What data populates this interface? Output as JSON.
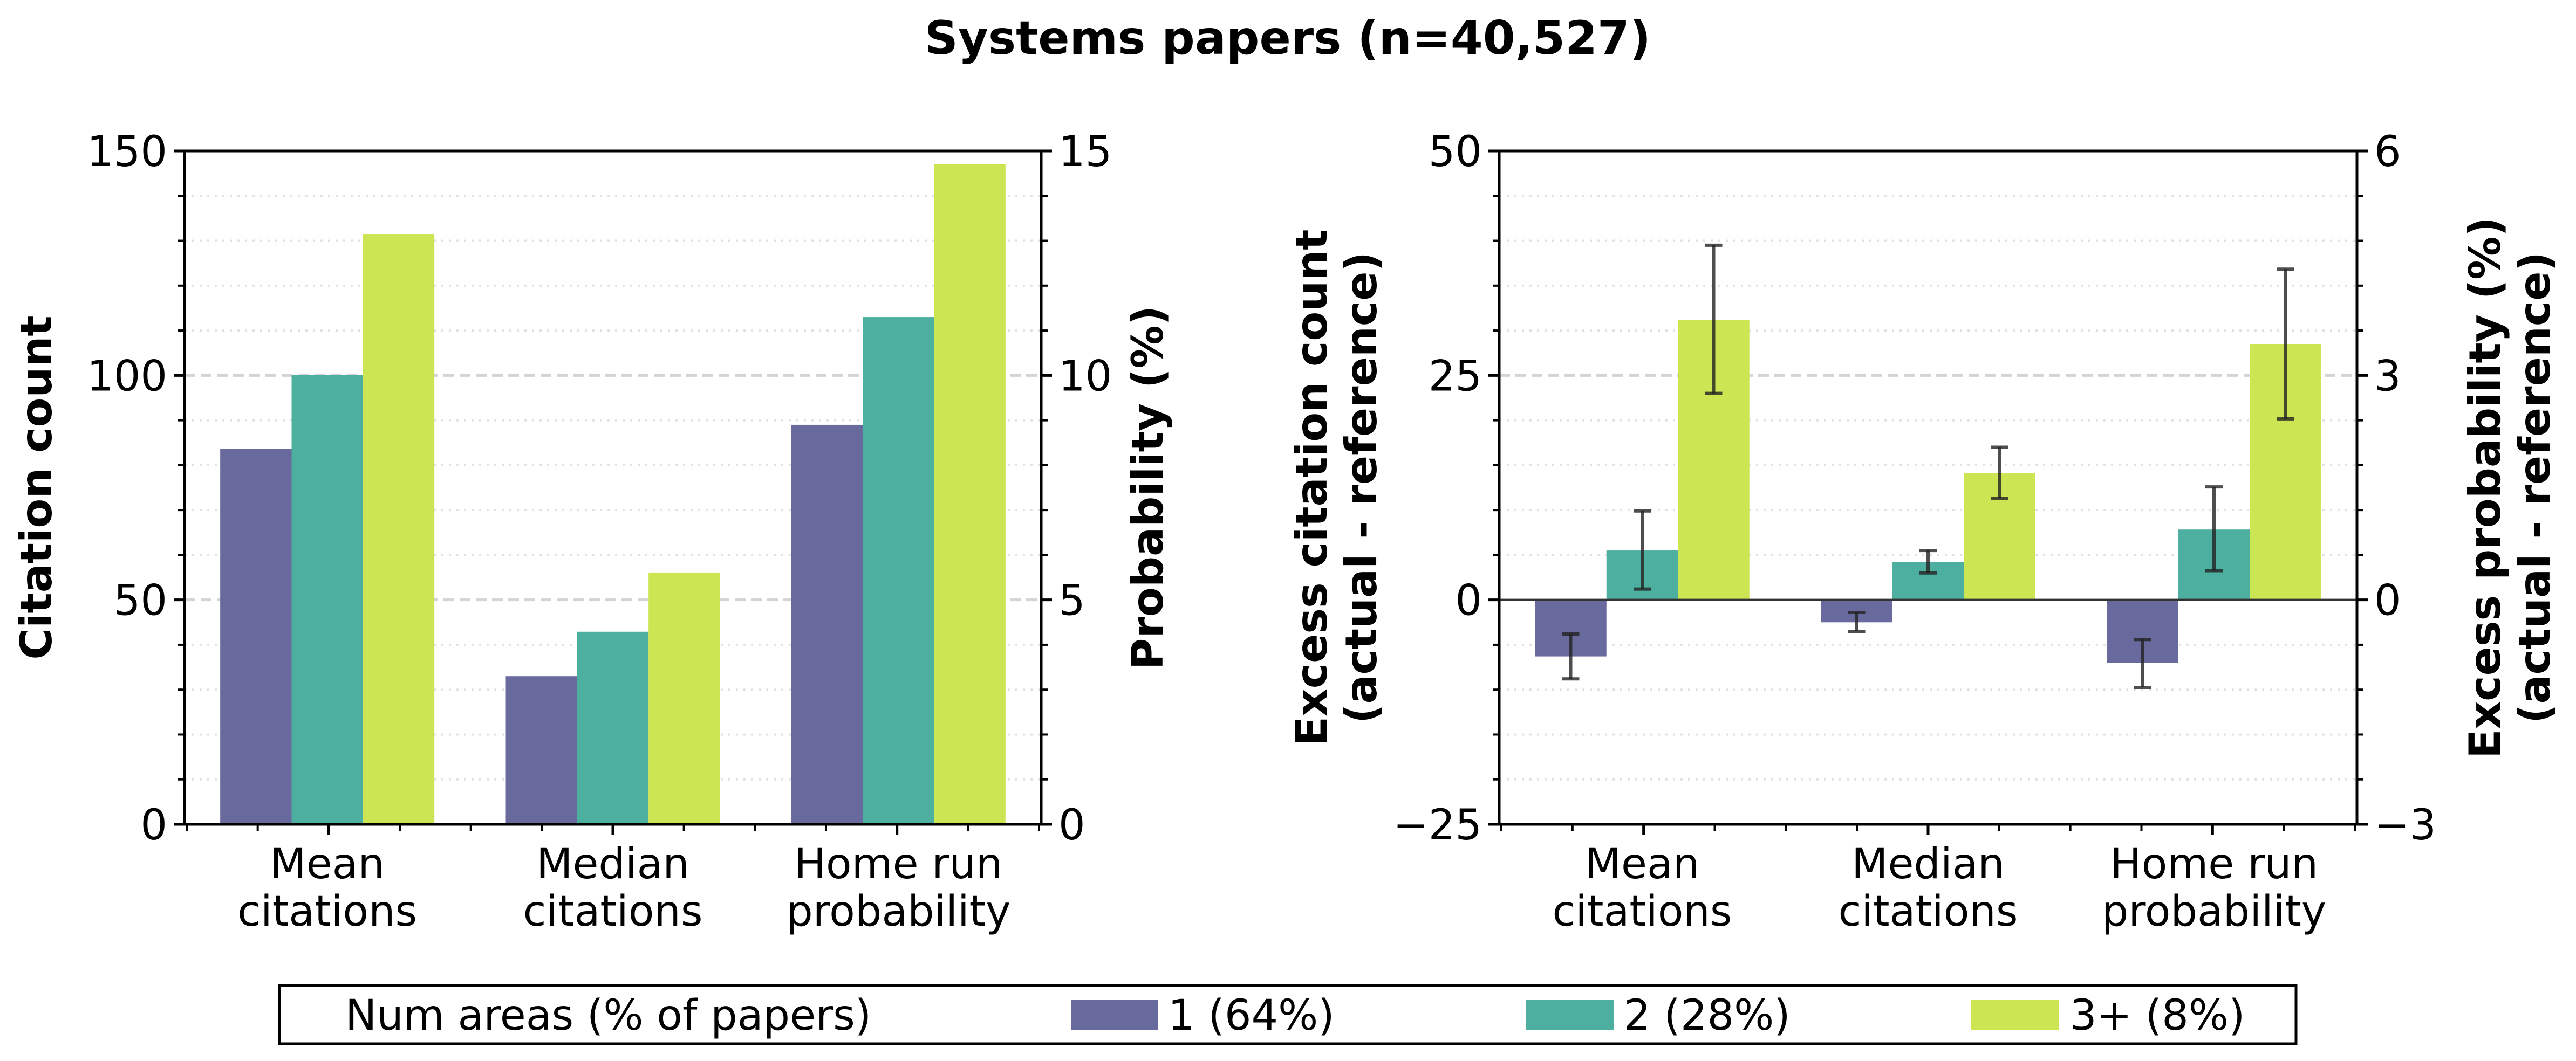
{
  "title": "Systems papers (n=40,527)",
  "colors": {
    "1": "#686a9d",
    "2": "#4caf9f",
    "3": "#cbe553",
    "errorbar": "#222222"
  },
  "legend": {
    "title": "Num areas (% of papers)",
    "entries": [
      "1 (64%)",
      "2 (28%)",
      "3+ (8%)"
    ],
    "placement": "bottom-center"
  },
  "chart_data": [
    {
      "type": "bar",
      "categories": [
        [
          "Mean",
          "citations"
        ],
        [
          "Median",
          "citations"
        ],
        [
          "Home run",
          "probability"
        ]
      ],
      "ylabel": "Citation count",
      "ylabel_right": "Probability (%)",
      "ylim": [
        0,
        150
      ],
      "ylim_right": [
        0,
        15
      ],
      "yticks": [
        "0",
        "50",
        "100",
        "150"
      ],
      "yticks_right": [
        "0",
        "5",
        "10",
        "15"
      ],
      "grid": true,
      "note_axis": "Mean and Median use left axis; Home run probability uses right axis",
      "series": [
        {
          "name": "1 (64%)",
          "values": [
            83.7,
            33.0,
            8.9
          ]
        },
        {
          "name": "2 (28%)",
          "values": [
            100.1,
            42.9,
            11.3
          ]
        },
        {
          "name": "3+ (8%)",
          "values": [
            131.5,
            56.1,
            14.7
          ]
        }
      ]
    },
    {
      "type": "bar",
      "categories": [
        [
          "Mean",
          "citations"
        ],
        [
          "Median",
          "citations"
        ],
        [
          "Home run",
          "probability"
        ]
      ],
      "ylabel": [
        "Excess citation count",
        "(actual - reference)"
      ],
      "ylabel_right": [
        "Excess probability (%)",
        "(actual - reference)"
      ],
      "ylim": [
        -25,
        50
      ],
      "ylim_right": [
        -3,
        6
      ],
      "yticks": [
        "−25",
        "0",
        "25",
        "50"
      ],
      "yticks_right": [
        "−3",
        "0",
        "3",
        "6"
      ],
      "grid": true,
      "series": [
        {
          "name": "1 (64%)",
          "values": [
            -6.3,
            -2.5,
            -0.84
          ],
          "err_low": [
            -8.8,
            -3.5,
            -1.17
          ],
          "err_high": [
            -3.8,
            -1.4,
            -0.53
          ]
        },
        {
          "name": "2 (28%)",
          "values": [
            5.5,
            4.2,
            0.94
          ],
          "err_low": [
            1.2,
            3.0,
            0.39
          ],
          "err_high": [
            9.9,
            5.5,
            1.51
          ]
        },
        {
          "name": "3+ (8%)",
          "values": [
            31.2,
            14.1,
            3.42
          ],
          "err_low": [
            23.0,
            11.3,
            2.42
          ],
          "err_high": [
            39.5,
            17.0,
            4.42
          ]
        }
      ]
    }
  ]
}
